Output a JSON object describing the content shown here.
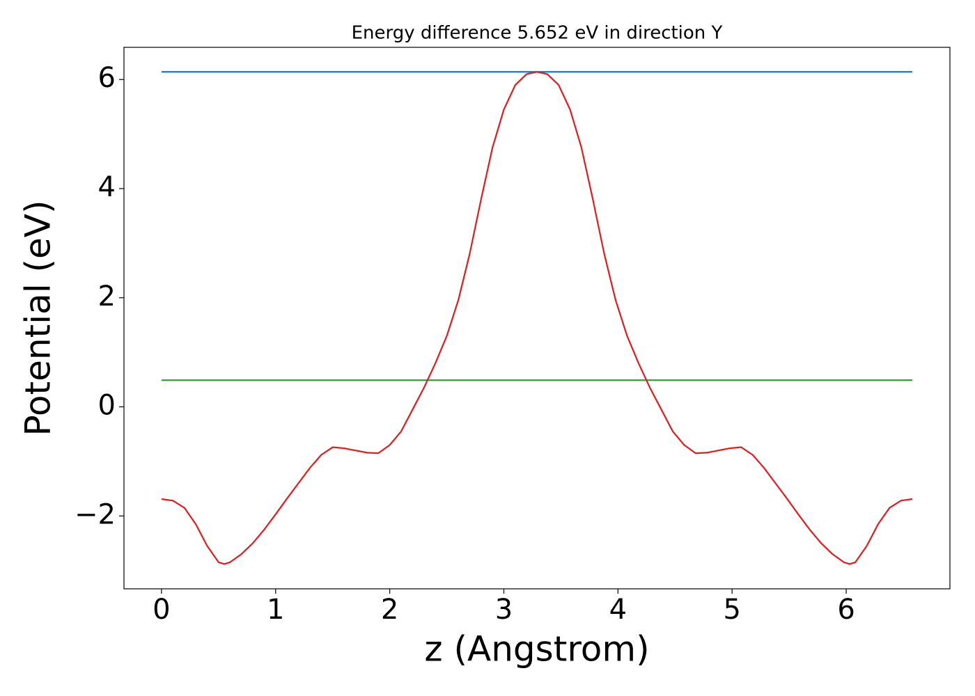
{
  "chart_data": {
    "type": "line",
    "title": "Energy difference 5.652 eV in direction Y",
    "x_label": "z (Angstrom)",
    "y_label": "Potential (eV)",
    "xlim": [
      -0.329,
      6.909
    ],
    "ylim": [
      -3.336,
      6.59
    ],
    "xticks": [
      0,
      1,
      2,
      3,
      4,
      5,
      6
    ],
    "yticks": [
      {
        "value": -2,
        "label": "−2"
      },
      0,
      2,
      4,
      6
    ],
    "series": [
      {
        "color": "#1f77b4",
        "x": [
          0,
          6.58
        ],
        "values": [
          6.14,
          6.14
        ]
      },
      {
        "color": "#2ca02c",
        "x": [
          0,
          6.58
        ],
        "values": [
          0.488,
          0.488
        ]
      },
      {
        "color": "#e41a1c",
        "x": [
          0,
          0.1,
          0.2,
          0.3,
          0.4,
          0.5,
          0.55,
          0.6,
          0.7,
          0.8,
          0.9,
          1.0,
          1.1,
          1.2,
          1.3,
          1.4,
          1.5,
          1.6,
          1.7,
          1.8,
          1.9,
          2.0,
          2.1,
          2.2,
          2.3,
          2.4,
          2.5,
          2.6,
          2.7,
          2.8,
          2.9,
          3.0,
          3.1,
          3.2,
          3.29,
          3.38,
          3.48,
          3.58,
          3.68,
          3.78,
          3.88,
          3.98,
          4.08,
          4.18,
          4.28,
          4.38,
          4.48,
          4.58,
          4.68,
          4.78,
          4.88,
          4.98,
          5.08,
          5.18,
          5.28,
          5.38,
          5.48,
          5.58,
          5.68,
          5.78,
          5.88,
          5.98,
          6.03,
          6.08,
          6.18,
          6.28,
          6.38,
          6.48,
          6.58
        ],
        "values": [
          -1.69,
          -1.72,
          -1.85,
          -2.15,
          -2.55,
          -2.85,
          -2.88,
          -2.85,
          -2.7,
          -2.5,
          -2.25,
          -1.97,
          -1.68,
          -1.4,
          -1.12,
          -0.88,
          -0.74,
          -0.76,
          -0.8,
          -0.84,
          -0.85,
          -0.7,
          -0.45,
          -0.05,
          0.35,
          0.8,
          1.3,
          1.95,
          2.8,
          3.8,
          4.75,
          5.45,
          5.9,
          6.1,
          6.14,
          6.1,
          5.9,
          5.45,
          4.75,
          3.8,
          2.8,
          1.95,
          1.3,
          0.8,
          0.35,
          -0.05,
          -0.45,
          -0.7,
          -0.85,
          -0.84,
          -0.8,
          -0.76,
          -0.74,
          -0.88,
          -1.12,
          -1.4,
          -1.68,
          -1.97,
          -2.25,
          -2.5,
          -2.7,
          -2.85,
          -2.88,
          -2.85,
          -2.55,
          -2.15,
          -1.85,
          -1.72,
          -1.69
        ]
      }
    ]
  }
}
